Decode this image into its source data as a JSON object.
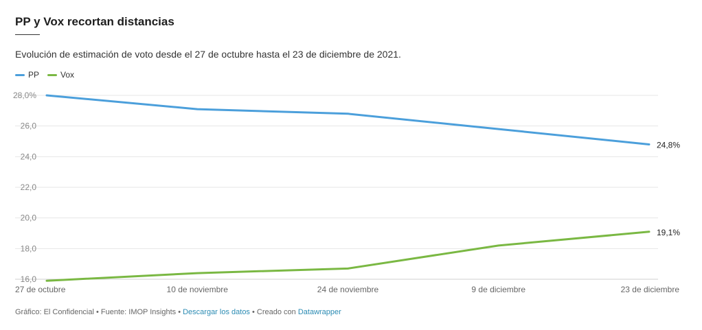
{
  "title": "PP y Vox recortan distancias",
  "subtitle": "Evolución de estimación de voto desde el 27 de octubre hasta el 23 de diciembre de 2021.",
  "footer": {
    "prefix": "Gráfico: El Confidencial • Fuente: IMOP Insights • ",
    "download_link": "Descargar los datos",
    "mid": " • Creado con ",
    "datawrapper_link": "Datawrapper"
  },
  "chart_data": {
    "type": "line",
    "categories": [
      "27 de octubre",
      "10 de noviembre",
      "24 de noviembre",
      "9 de diciembre",
      "23 de diciembre"
    ],
    "series": [
      {
        "name": "PP",
        "color": "#4b9fdb",
        "values": [
          28.0,
          27.1,
          26.8,
          25.8,
          24.8
        ],
        "end_label": "24,8%"
      },
      {
        "name": "Vox",
        "color": "#7ab843",
        "values": [
          15.9,
          16.4,
          16.7,
          18.2,
          19.1
        ],
        "end_label": "19,1%"
      }
    ],
    "ylim": [
      16,
      28
    ],
    "yticks": [
      {
        "v": 28,
        "label": "28,0%"
      },
      {
        "v": 26,
        "label": "26,0"
      },
      {
        "v": 24,
        "label": "24,0"
      },
      {
        "v": 22,
        "label": "22,0"
      },
      {
        "v": 20,
        "label": "20,0"
      },
      {
        "v": 18,
        "label": "18,0"
      },
      {
        "v": 16,
        "label": "16,0"
      }
    ],
    "grid": true,
    "legend": "top-left"
  }
}
